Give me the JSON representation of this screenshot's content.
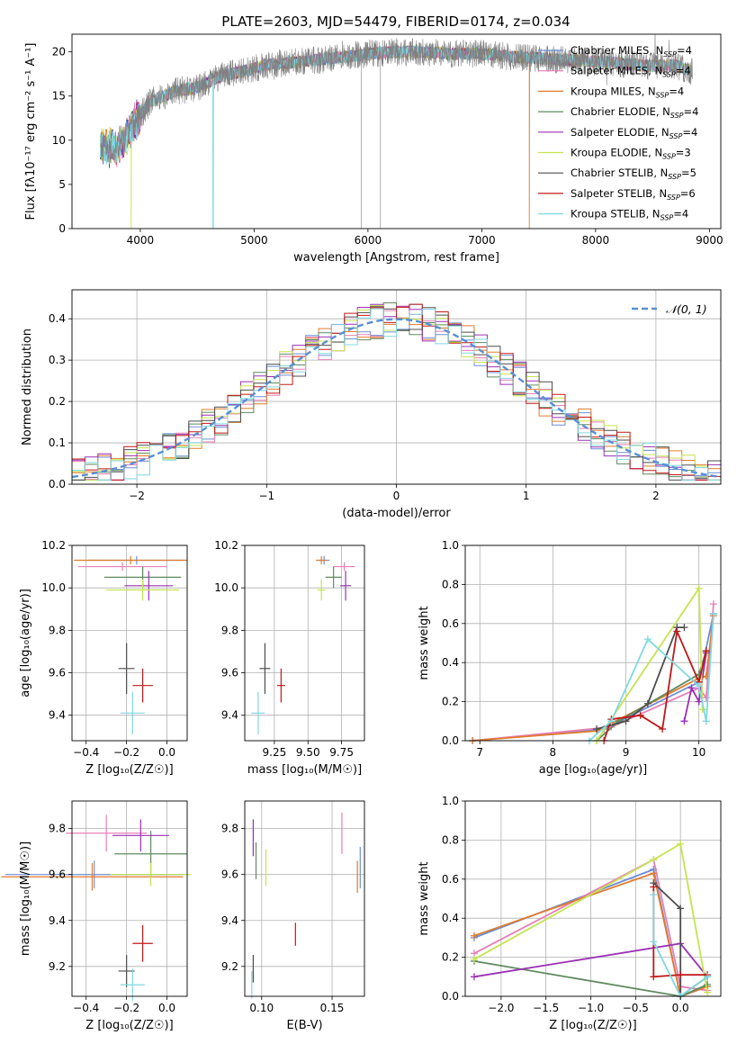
{
  "figure": {
    "title": "PLATE=2603, MJD=54479, FIBERID=0174, z=0.034"
  },
  "colors": {
    "Chabrier MILES": "#6b8fd6",
    "Salpeter MILES": "#e87fb6",
    "Kroupa MILES": "#e07b2c",
    "Chabrier ELODIE": "#5f8a5f",
    "Salpeter ELODIE": "#9b30b5",
    "Kroupa ELODIE": "#c5e34f",
    "Chabrier STELIB": "#4d4d4d",
    "Salpeter STELIB": "#c01818",
    "Kroupa STELIB": "#7fd8e0",
    "data": "#808080"
  },
  "chart_data": [
    {
      "type": "line",
      "panel": "spectrum",
      "xlabel": "wavelength [Angstrom, rest frame]",
      "ylabel": "Flux [fλ10⁻¹⁷ erg cm⁻² s⁻¹ A⁻¹]",
      "xlim": [
        3400,
        9100
      ],
      "ylim": [
        0,
        22
      ],
      "xticks": [
        4000,
        5000,
        6000,
        7000,
        8000,
        9000
      ],
      "yticks": [
        0,
        5,
        10,
        15,
        20
      ],
      "legend": [
        "Chabrier MILES, N_SSP=4",
        "Salpeter MILES, N_SSP=4",
        "Kroupa MILES, N_SSP=4",
        "Chabrier ELODIE, N_SSP=4",
        "Salpeter ELODIE, N_SSP=4",
        "Kroupa ELODIE, N_SSP=3",
        "Chabrier STELIB, N_SSP=5",
        "Salpeter STELIB, N_SSP=6",
        "Kroupa STELIB, N_SSP=4"
      ],
      "legend_position": "right",
      "continuum": {
        "x": [
          3650,
          3800,
          3950,
          4100,
          4300,
          4500,
          4700,
          4900,
          5100,
          5300,
          5500,
          5700,
          5900,
          6100,
          6300,
          6500,
          6700,
          6900,
          7100,
          7300,
          7500,
          7700,
          7900,
          8100,
          8300,
          8500,
          8700,
          8850
        ],
        "y": [
          9.5,
          9.0,
          12.0,
          14.5,
          15.5,
          16.0,
          17.2,
          17.8,
          18.5,
          18.8,
          19.0,
          19.3,
          19.6,
          19.9,
          20.0,
          20.0,
          19.8,
          19.8,
          19.7,
          19.4,
          19.3,
          19.1,
          19.0,
          18.8,
          18.6,
          18.4,
          18.5,
          17.8
        ]
      },
      "drops": [
        {
          "x": 3920,
          "series": "Kroupa ELODIE"
        },
        {
          "x": 4640,
          "series": "Kroupa STELIB"
        },
        {
          "x": 6800,
          "series": "Kroupa ELODIE"
        },
        {
          "x": 7420,
          "series": "Kroupa MILES"
        }
      ]
    },
    {
      "type": "area",
      "panel": "residuals",
      "xlabel": "(data-model)/error",
      "ylabel": "Normed distribution",
      "xlim": [
        -2.5,
        2.5
      ],
      "ylim": [
        0,
        0.47
      ],
      "xticks": [
        -2,
        -1,
        0,
        1,
        2
      ],
      "yticks": [
        0.0,
        0.1,
        0.2,
        0.3,
        0.4
      ],
      "legend": [
        "𝒩(0, 1)"
      ],
      "legend_position": "top-right",
      "bin_width": 0.1
    },
    {
      "type": "scatter",
      "panel": "age_vs_Z",
      "xlabel": "Z [log₁₀(Z/Z☉)]",
      "ylabel": "age  [log₁₀(age/yr)]",
      "xlim": [
        -0.47,
        0.1
      ],
      "ylim": [
        9.28,
        10.2
      ],
      "xticks": [
        -0.4,
        -0.2,
        0.0
      ],
      "yticks": [
        9.4,
        9.6,
        9.8,
        10.0,
        10.2
      ],
      "points": [
        {
          "s": "Chabrier MILES",
          "x": -0.15,
          "y": 10.13,
          "xe": 0.24,
          "ye": 0.02
        },
        {
          "s": "Salpeter MILES",
          "x": -0.22,
          "y": 10.1,
          "xe": 0.22,
          "ye": 0.02
        },
        {
          "s": "Kroupa MILES",
          "x": -0.18,
          "y": 10.13,
          "xe": 0.28,
          "ye": 0.02
        },
        {
          "s": "Chabrier ELODIE",
          "x": -0.12,
          "y": 10.05,
          "xe": 0.19,
          "ye": 0.05
        },
        {
          "s": "Salpeter ELODIE",
          "x": -0.09,
          "y": 10.01,
          "xe": 0.12,
          "ye": 0.07
        },
        {
          "s": "Kroupa ELODIE",
          "x": -0.12,
          "y": 9.99,
          "xe": 0.18,
          "ye": 0.05
        },
        {
          "s": "Chabrier STELIB",
          "x": -0.2,
          "y": 9.62,
          "xe": 0.04,
          "ye": 0.12
        },
        {
          "s": "Salpeter STELIB",
          "x": -0.12,
          "y": 9.54,
          "xe": 0.05,
          "ye": 0.08
        },
        {
          "s": "Kroupa STELIB",
          "x": -0.17,
          "y": 9.41,
          "xe": 0.06,
          "ye": 0.1
        }
      ]
    },
    {
      "type": "scatter",
      "panel": "age_vs_mass",
      "xlabel": "mass [log₁₀(M/M☉)]",
      "ylabel": "",
      "xlim": [
        9.03,
        9.92
      ],
      "ylim": [
        9.28,
        10.2
      ],
      "xticks": [
        9.25,
        9.5,
        9.75
      ],
      "yticks": [
        9.4,
        9.6,
        9.8,
        10.0,
        10.2
      ],
      "points": [
        {
          "s": "Chabrier MILES",
          "x": 9.62,
          "y": 10.13,
          "xe": 0.04,
          "ye": 0.02
        },
        {
          "s": "Salpeter MILES",
          "x": 9.77,
          "y": 10.1,
          "xe": 0.08,
          "ye": 0.02
        },
        {
          "s": "Kroupa MILES",
          "x": 9.6,
          "y": 10.13,
          "xe": 0.04,
          "ye": 0.02
        },
        {
          "s": "Chabrier ELODIE",
          "x": 9.69,
          "y": 10.05,
          "xe": 0.06,
          "ye": 0.05
        },
        {
          "s": "Salpeter ELODIE",
          "x": 9.78,
          "y": 10.01,
          "xe": 0.04,
          "ye": 0.07
        },
        {
          "s": "Kroupa ELODIE",
          "x": 9.6,
          "y": 9.99,
          "xe": 0.03,
          "ye": 0.05
        },
        {
          "s": "Chabrier STELIB",
          "x": 9.18,
          "y": 9.62,
          "xe": 0.04,
          "ye": 0.12
        },
        {
          "s": "Salpeter STELIB",
          "x": 9.3,
          "y": 9.54,
          "xe": 0.03,
          "ye": 0.08
        },
        {
          "s": "Kroupa STELIB",
          "x": 9.13,
          "y": 9.41,
          "xe": 0.05,
          "ye": 0.1
        }
      ]
    },
    {
      "type": "line",
      "panel": "mass_weight_vs_age",
      "xlabel": "age  [log₁₀(age/yr)]",
      "ylabel": "mass weight",
      "xlim": [
        6.8,
        10.3
      ],
      "ylim": [
        0,
        1.0
      ],
      "xticks": [
        7,
        8,
        9,
        10
      ],
      "yticks": [
        0.0,
        0.2,
        0.4,
        0.6,
        0.8,
        1.0
      ],
      "series": [
        {
          "s": "Chabrier MILES",
          "points": [
            [
              6.9,
              0.0
            ],
            [
              8.7,
              0.06
            ],
            [
              10.0,
              0.3
            ],
            [
              10.2,
              0.65
            ]
          ]
        },
        {
          "s": "Salpeter MILES",
          "points": [
            [
              6.9,
              0.0
            ],
            [
              8.8,
              0.07
            ],
            [
              10.0,
              0.27
            ],
            [
              10.1,
              0.22
            ],
            [
              10.2,
              0.7
            ]
          ]
        },
        {
          "s": "Kroupa MILES",
          "points": [
            [
              6.9,
              0.0
            ],
            [
              8.6,
              0.05
            ],
            [
              10.0,
              0.32
            ],
            [
              10.1,
              0.33
            ],
            [
              10.2,
              0.64
            ]
          ]
        },
        {
          "s": "Chabrier ELODIE",
          "points": [
            [
              8.6,
              0.0
            ],
            [
              8.9,
              0.1
            ],
            [
              10.0,
              0.34
            ],
            [
              10.1,
              0.46
            ]
          ]
        },
        {
          "s": "Salpeter ELODIE",
          "points": [
            [
              9.8,
              0.1
            ],
            [
              9.9,
              0.27
            ],
            [
              10.0,
              0.2
            ],
            [
              10.1,
              0.45
            ]
          ]
        },
        {
          "s": "Kroupa ELODIE",
          "points": [
            [
              8.6,
              0.0
            ],
            [
              10.0,
              0.78
            ],
            [
              10.05,
              0.16
            ]
          ]
        },
        {
          "s": "Chabrier STELIB",
          "points": [
            [
              8.6,
              0.06
            ],
            [
              9.0,
              0.1
            ],
            [
              9.3,
              0.19
            ],
            [
              9.7,
              0.58
            ],
            [
              9.8,
              0.58
            ]
          ]
        },
        {
          "s": "Salpeter STELIB",
          "points": [
            [
              8.7,
              0.0
            ],
            [
              8.8,
              0.11
            ],
            [
              9.2,
              0.13
            ],
            [
              9.5,
              0.06
            ],
            [
              9.7,
              0.56
            ],
            [
              10.0,
              0.3
            ],
            [
              10.1,
              0.46
            ]
          ]
        },
        {
          "s": "Kroupa STELIB",
          "points": [
            [
              8.5,
              0.0
            ],
            [
              8.8,
              0.1
            ],
            [
              9.3,
              0.52
            ],
            [
              10.0,
              0.28
            ],
            [
              10.1,
              0.1
            ],
            [
              10.2,
              0.65
            ]
          ]
        }
      ]
    },
    {
      "type": "scatter",
      "panel": "mass_vs_Z",
      "xlabel": "Z [log₁₀(Z/Z☉)]",
      "ylabel": "mass [log₁₀(M/M☉)]",
      "xlim": [
        -0.47,
        0.1
      ],
      "ylim": [
        9.07,
        9.92
      ],
      "xticks": [
        -0.4,
        -0.2,
        0.0
      ],
      "yticks": [
        9.2,
        9.4,
        9.6,
        9.8
      ],
      "points": [
        {
          "s": "Chabrier MILES",
          "x": -0.36,
          "y": 9.6,
          "xe": 0.44,
          "ye": 0.06
        },
        {
          "s": "Salpeter MILES",
          "x": -0.3,
          "y": 9.78,
          "xe": 0.2,
          "ye": 0.08
        },
        {
          "s": "Kroupa MILES",
          "x": -0.37,
          "y": 9.59,
          "xe": 0.45,
          "ye": 0.06
        },
        {
          "s": "Chabrier ELODIE",
          "x": -0.08,
          "y": 9.69,
          "xe": 0.18,
          "ye": 0.1
        },
        {
          "s": "Salpeter ELODIE",
          "x": -0.13,
          "y": 9.77,
          "xe": 0.14,
          "ye": 0.07
        },
        {
          "s": "Kroupa ELODIE",
          "x": -0.08,
          "y": 9.6,
          "xe": 0.2,
          "ye": 0.05
        },
        {
          "s": "Chabrier STELIB",
          "x": -0.2,
          "y": 9.18,
          "xe": 0.04,
          "ye": 0.07
        },
        {
          "s": "Salpeter STELIB",
          "x": -0.12,
          "y": 9.3,
          "xe": 0.05,
          "ye": 0.08
        },
        {
          "s": "Kroupa STELIB",
          "x": -0.17,
          "y": 9.12,
          "xe": 0.06,
          "ye": 0.07
        }
      ]
    },
    {
      "type": "scatter",
      "panel": "mass_vs_EBV",
      "xlabel": "E(B-V)",
      "ylabel": "",
      "xlim": [
        0.088,
        0.173
      ],
      "ylim": [
        9.07,
        9.92
      ],
      "xticks": [
        0.1,
        0.15
      ],
      "yticks": [
        9.2,
        9.4,
        9.6,
        9.8
      ],
      "points": [
        {
          "s": "Chabrier MILES",
          "x": 0.17,
          "y": 9.63,
          "xe": 0,
          "ye": 0.09
        },
        {
          "s": "Salpeter MILES",
          "x": 0.157,
          "y": 9.78,
          "xe": 0,
          "ye": 0.09
        },
        {
          "s": "Kroupa MILES",
          "x": 0.168,
          "y": 9.59,
          "xe": 0,
          "ye": 0.07
        },
        {
          "s": "Chabrier ELODIE",
          "x": 0.096,
          "y": 9.66,
          "xe": 0,
          "ye": 0.08
        },
        {
          "s": "Salpeter ELODIE",
          "x": 0.094,
          "y": 9.76,
          "xe": 0,
          "ye": 0.08
        },
        {
          "s": "Kroupa ELODIE",
          "x": 0.103,
          "y": 9.63,
          "xe": 0,
          "ye": 0.08
        },
        {
          "s": "Chabrier STELIB",
          "x": 0.094,
          "y": 9.19,
          "xe": 0,
          "ye": 0.06
        },
        {
          "s": "Salpeter STELIB",
          "x": 0.124,
          "y": 9.34,
          "xe": 0,
          "ye": 0.05
        },
        {
          "s": "Kroupa STELIB",
          "x": 0.093,
          "y": 9.12,
          "xe": 0,
          "ye": 0.06
        }
      ]
    },
    {
      "type": "line",
      "panel": "mass_weight_vs_Z",
      "xlabel": "Z [log₁₀(Z/Z☉)]",
      "ylabel": "mass weight",
      "xlim": [
        -2.4,
        0.45
      ],
      "ylim": [
        0,
        1.0
      ],
      "xticks": [
        -2.0,
        -1.5,
        -1.0,
        -0.5,
        0.0
      ],
      "yticks": [
        0.0,
        0.2,
        0.4,
        0.6,
        0.8,
        1.0
      ],
      "series": [
        {
          "s": "Chabrier MILES",
          "points": [
            [
              -2.3,
              0.3
            ],
            [
              -0.3,
              0.65
            ],
            [
              0.0,
              0.0
            ],
            [
              0.3,
              0.05
            ]
          ]
        },
        {
          "s": "Salpeter MILES",
          "points": [
            [
              -2.3,
              0.22
            ],
            [
              -0.3,
              0.7
            ],
            [
              0.0,
              0.05
            ],
            [
              0.3,
              0.03
            ]
          ]
        },
        {
          "s": "Kroupa MILES",
          "points": [
            [
              -2.3,
              0.31
            ],
            [
              -0.3,
              0.63
            ],
            [
              0.0,
              0.0
            ],
            [
              0.3,
              0.05
            ]
          ]
        },
        {
          "s": "Chabrier ELODIE",
          "points": [
            [
              -2.3,
              0.18
            ],
            [
              0.0,
              0.0
            ],
            [
              0.3,
              0.06
            ]
          ]
        },
        {
          "s": "Salpeter ELODIE",
          "points": [
            [
              -2.3,
              0.1
            ],
            [
              0.0,
              0.27
            ],
            [
              0.3,
              0.1
            ]
          ]
        },
        {
          "s": "Kroupa ELODIE",
          "points": [
            [
              -2.3,
              0.19
            ],
            [
              -0.3,
              0.7
            ],
            [
              0.0,
              0.78
            ],
            [
              0.3,
              0.02
            ]
          ]
        },
        {
          "s": "Chabrier STELIB",
          "points": [
            [
              -0.3,
              0.58
            ],
            [
              0.0,
              0.45
            ],
            [
              0.0,
              0.0
            ],
            [
              0.3,
              0.1
            ]
          ]
        },
        {
          "s": "Salpeter STELIB",
          "points": [
            [
              -0.3,
              0.56
            ],
            [
              -0.3,
              0.1
            ],
            [
              0.0,
              0.11
            ],
            [
              0.3,
              0.11
            ]
          ]
        },
        {
          "s": "Kroupa STELIB",
          "points": [
            [
              -0.3,
              0.52
            ],
            [
              -0.3,
              0.28
            ],
            [
              0.0,
              0.0
            ],
            [
              0.3,
              0.1
            ]
          ]
        }
      ]
    }
  ]
}
